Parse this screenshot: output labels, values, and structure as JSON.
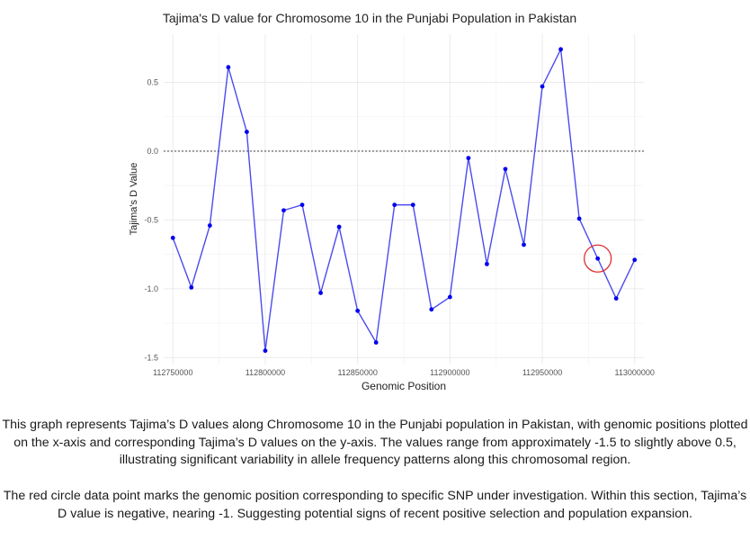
{
  "chart_data": {
    "type": "line",
    "title": "Tajima's D value for Chromosome 10 in the Punjabi Population in Pakistan",
    "xlabel": "Genomic Position",
    "ylabel": "Tajima's D Value",
    "xlim": [
      112745000,
      113005000
    ],
    "ylim": [
      -1.55,
      0.85
    ],
    "xticks": [
      112750000,
      112800000,
      112850000,
      112900000,
      112950000,
      113000000
    ],
    "xtick_labels": [
      "112750000",
      "112800000",
      "112850000",
      "112900000",
      "112950000",
      "113000000"
    ],
    "yticks": [
      -1.5,
      -1.0,
      -0.5,
      0.0,
      0.5
    ],
    "ytick_labels": [
      "-1.5",
      "-1.0",
      "-0.5",
      "0.0",
      "0.5"
    ],
    "reference_line": {
      "y": 0.0,
      "style": "dotted",
      "color": "#555555"
    },
    "grid": true,
    "line_color": "#4b4bf0",
    "point_color": "#0000ee",
    "x": [
      112750000,
      112760000,
      112770000,
      112780000,
      112790000,
      112800000,
      112810000,
      112820000,
      112830000,
      112840000,
      112850000,
      112860000,
      112870000,
      112880000,
      112890000,
      112900000,
      112910000,
      112920000,
      112930000,
      112940000,
      112950000,
      112960000,
      112970000,
      112980000,
      112990000,
      113000000
    ],
    "values": [
      -0.63,
      -0.99,
      -0.54,
      0.61,
      0.14,
      -1.45,
      -0.43,
      -0.39,
      -1.03,
      -0.55,
      -1.16,
      -1.39,
      -0.39,
      -0.39,
      -1.15,
      -1.06,
      -0.05,
      -0.82,
      -0.13,
      -0.68,
      0.47,
      0.74,
      -0.49,
      -0.78,
      -1.07,
      -0.79
    ],
    "highlight": {
      "x": 112980000,
      "y": -0.78,
      "marker": "circle",
      "color": "#e03030"
    }
  },
  "caption": {
    "paragraph1": "This graph represents Tajima’s D values along Chromosome 10 in the Punjabi population in Pakistan, with genomic positions plotted on the x-axis and corresponding Tajima’s D values on the y-axis. The values range from approximately -1.5 to slightly above 0.5, illustrating significant variability in allele frequency patterns along this chromosomal region.",
    "paragraph2": "The red circle data point marks the genomic position corresponding to specific SNP under investigation. Within this section, Tajima’s D value is negative, nearing -1. Suggesting potential signs of recent positive selection and population expansion."
  }
}
